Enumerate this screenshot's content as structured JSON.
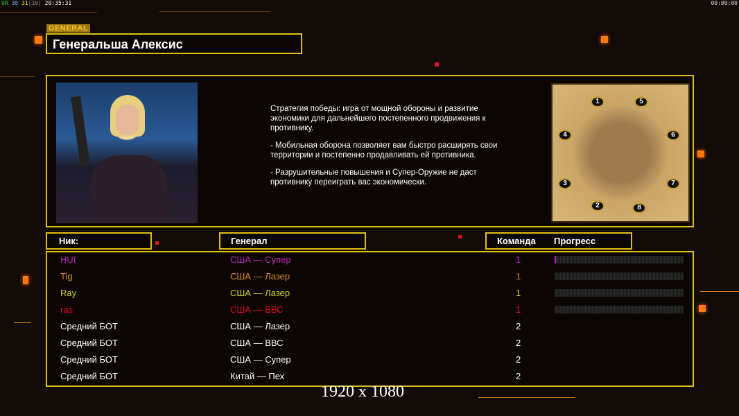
{
  "status": {
    "fps_label": "UR",
    "v1": "30",
    "v2": "31",
    "v3": "[30]",
    "time": "20:35:31",
    "clock": "00:00:00"
  },
  "general": {
    "tag": "GENERAL",
    "name": "Генеральша Алексис"
  },
  "description": [
    "Стратегия победы: игра от мощной обороны и развитие экономики для дальнейшего постепенного продвижения к противнику.",
    "- Мобильная оборона позволяет вам быстро расширять свои территории и постепенно продавливать ей противника.",
    "- Разрушительные повышения и Супер-Оружие не даст противнику переиграть вас экономически."
  ],
  "map": {
    "slots": [
      "1",
      "2",
      "3",
      "4",
      "5",
      "6",
      "7",
      "8"
    ]
  },
  "headers": {
    "nick": "Ник:",
    "general": "Генерал",
    "team": "Команда",
    "progress": "Прогресс"
  },
  "players": [
    {
      "nick": "HUI",
      "general": "США — Супер",
      "team": "1",
      "color": "#c020c0",
      "progress": 0.01
    },
    {
      "nick": "Tig",
      "general": "США — Лазер",
      "team": "1",
      "color": "#e08a20",
      "progress": 0
    },
    {
      "nick": "Ray",
      "general": "США — Лазер",
      "team": "1",
      "color": "#d0d020",
      "progress": 0
    },
    {
      "nick": "ras",
      "general": "США — ВВС",
      "team": "1",
      "color": "#e01010",
      "progress": 0
    },
    {
      "nick": "Средний БОТ",
      "general": "США — Лазер",
      "team": "2",
      "color": "#ffffff"
    },
    {
      "nick": "Средний БОТ",
      "general": "США — ВВС",
      "team": "2",
      "color": "#ffffff"
    },
    {
      "nick": "Средний БОТ",
      "general": "США — Супер",
      "team": "2",
      "color": "#ffffff"
    },
    {
      "nick": "Средний БОТ",
      "general": "Китай — Пех",
      "team": "2",
      "color": "#ffffff"
    }
  ],
  "resolution": "1920 x 1080"
}
